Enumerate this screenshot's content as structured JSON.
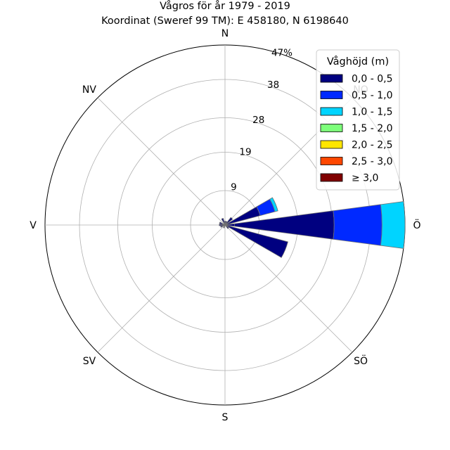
{
  "chart_data": {
    "type": "wind-rose",
    "title": "Vågros för år 1979 - 2019",
    "subtitle": "Koordinat (Sweref 99 TM): E 458180, N 6198640",
    "directions": [
      "N",
      "NO",
      "Ö",
      "SÖ",
      "S",
      "SV",
      "V",
      "NV"
    ],
    "rmax": 47,
    "ring_ticks": [
      9,
      19,
      28,
      38,
      47
    ],
    "ring_tick_labels": [
      "9",
      "19",
      "28",
      "38",
      "47%"
    ],
    "grid": true,
    "legend": {
      "title": "Våghöjd (m)",
      "placement": "top-right",
      "entries": [
        {
          "label": "0,0 - 0,5",
          "color": "#000080"
        },
        {
          "label": "0,5 - 1,0",
          "color": "#0029ff"
        },
        {
          "label": "1,0 - 1,5",
          "color": "#00d4ff"
        },
        {
          "label": "1,5 - 2,0",
          "color": "#7dff7a"
        },
        {
          "label": "2,0 - 2,5",
          "color": "#ffe600"
        },
        {
          "label": "2,5 - 3,0",
          "color": "#ff4700"
        },
        {
          "label": "≥ 3,0",
          "color": "#800000"
        }
      ]
    },
    "sector_width_deg": 15,
    "sectors": [
      {
        "direction_deg": 67.5,
        "cumulative": [
          9.5,
          13.5,
          14.3
        ]
      },
      {
        "direction_deg": 90,
        "cumulative": [
          28.5,
          41.0,
          47.0
        ]
      },
      {
        "direction_deg": 112.5,
        "cumulative": [
          17.0
        ]
      },
      {
        "direction_deg": 90,
        "cumulative": [
          2.5
        ]
      },
      {
        "direction_deg": 45,
        "cumulative": [
          2.5
        ]
      },
      {
        "direction_deg": 337.5,
        "cumulative": [
          1.8
        ]
      },
      {
        "direction_deg": 270,
        "cumulative": [
          1.5
        ]
      },
      {
        "direction_deg": 247.5,
        "cumulative": [
          1.2
        ]
      },
      {
        "direction_deg": 292.5,
        "cumulative": [
          1.5
        ]
      },
      {
        "direction_deg": 22.5,
        "cumulative": [
          1.0
        ]
      },
      {
        "direction_deg": 135,
        "cumulative": [
          1.2
        ]
      },
      {
        "direction_deg": 202.5,
        "cumulative": [
          0.8
        ]
      },
      {
        "direction_deg": 0,
        "cumulative": [
          1.0
        ]
      }
    ]
  }
}
